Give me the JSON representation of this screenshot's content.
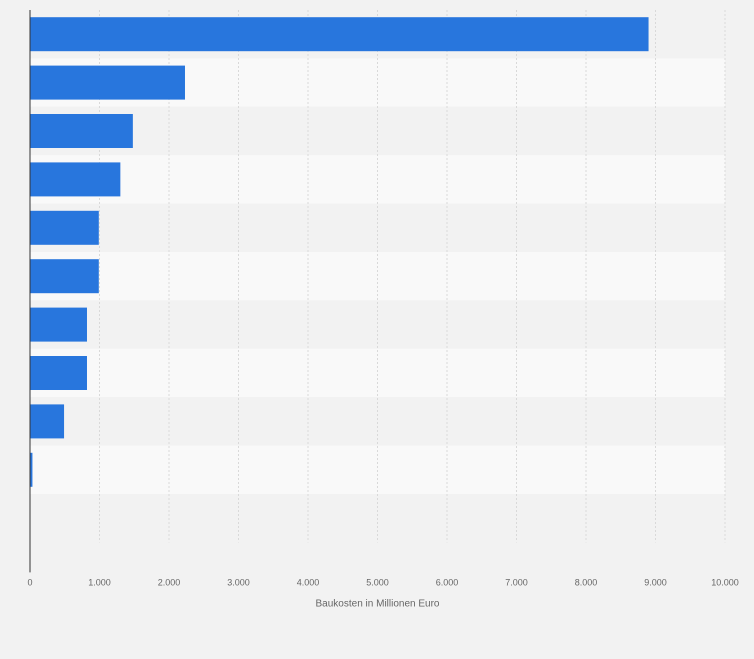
{
  "chart_data": {
    "type": "bar",
    "orientation": "horizontal",
    "categories": [
      "",
      "",
      "",
      "",
      "",
      "",
      "",
      "",
      "",
      ""
    ],
    "values": [
      8900,
      2230,
      1480,
      1300,
      990,
      990,
      820,
      820,
      490,
      35
    ],
    "title": "",
    "xlabel": "Baukosten in Millionen Euro",
    "ylabel": "",
    "xlim": [
      0,
      10000
    ],
    "xticks": [
      0,
      1000,
      2000,
      3000,
      4000,
      5000,
      6000,
      7000,
      8000,
      9000,
      10000
    ],
    "xtick_labels": [
      "0",
      "1.000",
      "2.000",
      "3.000",
      "4.000",
      "5.000",
      "6.000",
      "7.000",
      "8.000",
      "9.000",
      "10.000"
    ],
    "grid": true,
    "legend": "none",
    "colors": {
      "bar": "#2876dd",
      "band_dark": "#f2f2f2",
      "band_light": "#f9f9f9",
      "grid": "#d9d9d9",
      "axis": "#333333",
      "text": "#666666"
    }
  }
}
